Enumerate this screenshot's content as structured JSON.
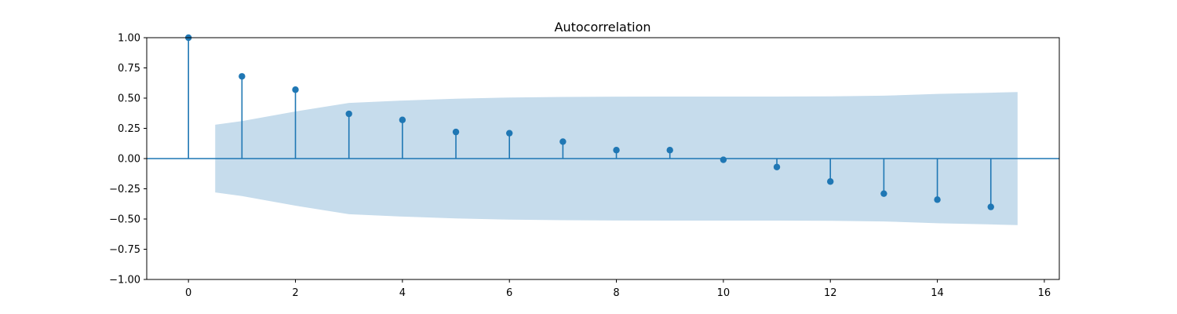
{
  "chart_data": {
    "type": "stem",
    "title": "Autocorrelation",
    "xlabel": "",
    "ylabel": "",
    "xlim": [
      -0.78,
      16.28
    ],
    "ylim": [
      -1.0,
      1.0
    ],
    "xticks": [
      0,
      2,
      4,
      6,
      8,
      10,
      12,
      14,
      16
    ],
    "xtick_labels": [
      "0",
      "2",
      "4",
      "6",
      "8",
      "10",
      "12",
      "14",
      "16"
    ],
    "yticks": [
      -1.0,
      -0.75,
      -0.5,
      -0.25,
      0.0,
      0.25,
      0.5,
      0.75,
      1.0
    ],
    "ytick_labels": [
      "−1.00",
      "−0.75",
      "−0.50",
      "−0.25",
      "0.00",
      "0.25",
      "0.50",
      "0.75",
      "1.00"
    ],
    "lags": [
      0,
      1,
      2,
      3,
      4,
      5,
      6,
      7,
      8,
      9,
      10,
      11,
      12,
      13,
      14,
      15
    ],
    "values": [
      1.0,
      0.68,
      0.57,
      0.37,
      0.32,
      0.22,
      0.21,
      0.14,
      0.07,
      0.07,
      -0.01,
      -0.07,
      -0.19,
      -0.29,
      -0.34,
      -0.4
    ],
    "confidence_band": {
      "x": [
        0.5,
        1,
        2,
        3,
        4,
        5,
        6,
        7,
        8,
        9,
        10,
        11,
        12,
        13,
        14,
        15,
        15.5
      ],
      "upper": [
        0.28,
        0.31,
        0.39,
        0.46,
        0.48,
        0.495,
        0.505,
        0.51,
        0.512,
        0.513,
        0.513,
        0.513,
        0.515,
        0.52,
        0.535,
        0.545,
        0.55
      ],
      "lower": [
        -0.28,
        -0.31,
        -0.39,
        -0.46,
        -0.48,
        -0.495,
        -0.505,
        -0.51,
        -0.512,
        -0.513,
        -0.513,
        -0.513,
        -0.515,
        -0.52,
        -0.535,
        -0.545,
        -0.55
      ]
    },
    "grid": false,
    "colors": {
      "stem": "#1f77b4",
      "band": "#c6dcec",
      "zero_line": "#1f77b4",
      "axis": "#000000"
    }
  }
}
